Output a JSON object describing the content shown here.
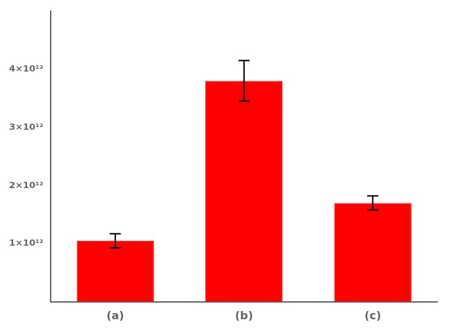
{
  "chart_data": {
    "type": "bar",
    "categories": [
      "(a)",
      "(b)",
      "(c)"
    ],
    "values": [
      1050000000000.0,
      3800000000000.0,
      1700000000000.0
    ],
    "errors": [
      120000000000.0,
      350000000000.0,
      120000000000.0
    ],
    "color": "#FF0000",
    "ylim": [
      0,
      5000000000000.0
    ],
    "yticks": [
      {
        "value": 1000000000000.0,
        "label": "1×10¹²"
      },
      {
        "value": 2000000000000.0,
        "label": "2×10¹²"
      },
      {
        "value": 3000000000000.0,
        "label": "3×10¹²"
      },
      {
        "value": 4000000000000.0,
        "label": "4×10¹²"
      }
    ],
    "grid": false,
    "legend": false
  }
}
